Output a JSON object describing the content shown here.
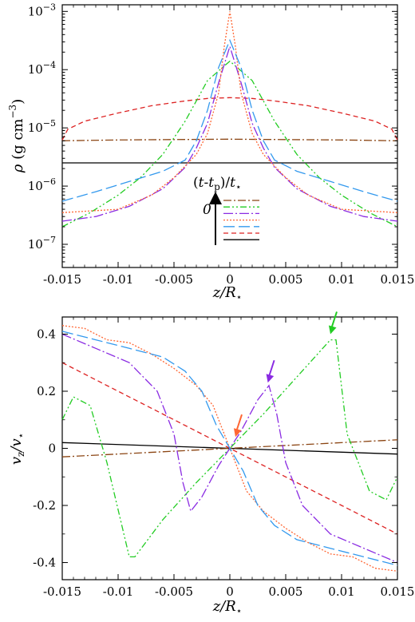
{
  "colors": {
    "brown": "#8B4513",
    "green": "#22cc22",
    "purple": "#8a2be2",
    "orange": "#ff6633",
    "blue": "#3399ee",
    "red": "#dd2222",
    "black": "#000000"
  },
  "legend": {
    "title": "(t-t_p)/t_⋆",
    "arrow_label": "0"
  },
  "chart_data": [
    {
      "type": "line",
      "panel": "top",
      "xlabel": "z/R_⋆",
      "ylabel": "ρ (g cm^-3)",
      "log_y": true,
      "xlim": [
        -0.015,
        0.015
      ],
      "ylim": [
        4e-08,
        0.0013
      ],
      "x_ticks": [
        "-0.015",
        "-0.01",
        "-0.005",
        "0",
        "0.005",
        "0.01",
        "0.015"
      ],
      "y_ticks": [
        "10^-7",
        "10^-6",
        "10^-5",
        "10^-4",
        "10^-3"
      ],
      "series": [
        {
          "color_key": "black",
          "dash": "",
          "x": [
            -0.015,
            -0.01,
            -0.005,
            0,
            0.005,
            0.01,
            0.015
          ],
          "y": [
            2.5e-06,
            2.5e-06,
            2.5e-06,
            2.5e-06,
            2.5e-06,
            2.5e-06,
            2.5e-06
          ]
        },
        {
          "color_key": "brown",
          "dash": "10,3,2,3",
          "x": [
            -0.015,
            -0.01,
            -0.005,
            0,
            0.005,
            0.01,
            0.015
          ],
          "y": [
            6e-06,
            6.2e-06,
            6.3e-06,
            6.4e-06,
            6.3e-06,
            6.2e-06,
            6e-06
          ]
        },
        {
          "color_key": "red",
          "dash": "6,4",
          "x": [
            -0.015,
            -0.0145,
            -0.013,
            -0.01,
            -0.007,
            -0.004,
            -0.002,
            0,
            0.002,
            0.004,
            0.007,
            0.01,
            0.013,
            0.0145,
            0.015
          ],
          "y": [
            6.2e-06,
            9.5e-06,
            1.3e-05,
            1.8e-05,
            2.4e-05,
            2.9e-05,
            3.2e-05,
            3.3e-05,
            3.2e-05,
            2.9e-05,
            2.4e-05,
            1.8e-05,
            1.3e-05,
            9.5e-06,
            6.2e-06
          ]
        },
        {
          "color_key": "green",
          "dash": "8,3,2,3,2,3",
          "x": [
            -0.015,
            -0.0125,
            -0.01,
            -0.008,
            -0.006,
            -0.004,
            -0.002,
            0,
            0.002,
            0.004,
            0.006,
            0.008,
            0.01,
            0.0125,
            0.015
          ],
          "y": [
            2e-07,
            3.5e-07,
            7e-07,
            1.4e-06,
            3.5e-06,
            1.3e-05,
            6.5e-05,
            0.00014,
            6.5e-05,
            1.3e-05,
            3.5e-06,
            1.4e-06,
            7e-07,
            3.5e-07,
            2e-07
          ]
        },
        {
          "color_key": "purple",
          "dash": "12,3,2,3",
          "x": [
            -0.015,
            -0.012,
            -0.009,
            -0.006,
            -0.004,
            -0.003,
            -0.002,
            -0.001,
            0,
            0.001,
            0.002,
            0.003,
            0.004,
            0.006,
            0.009,
            0.012,
            0.015
          ],
          "y": [
            2.5e-07,
            3e-07,
            4.5e-07,
            9e-07,
            2.1e-06,
            4.5e-06,
            1.2e-05,
            6e-05,
            0.00025,
            6e-05,
            1.2e-05,
            4.5e-06,
            2.1e-06,
            9e-07,
            4.5e-07,
            3e-07,
            2.5e-07
          ]
        },
        {
          "color_key": "orange",
          "dash": "2,2",
          "x": [
            -0.015,
            -0.01,
            -0.007,
            -0.005,
            -0.003,
            -0.002,
            -0.001,
            -0.0005,
            0,
            0.0005,
            0.001,
            0.002,
            0.003,
            0.005,
            0.007,
            0.01,
            0.015
          ],
          "y": [
            3.5e-07,
            4e-07,
            7e-07,
            1.4e-06,
            3.5e-06,
            8e-06,
            4e-05,
            0.00025,
            0.001,
            0.00025,
            4e-05,
            8e-06,
            3.5e-06,
            1.4e-06,
            7e-07,
            4e-07,
            3.5e-07
          ]
        },
        {
          "color_key": "blue",
          "dash": "14,5",
          "x": [
            -0.015,
            -0.012,
            -0.009,
            -0.006,
            -0.004,
            -0.003,
            -0.002,
            -0.001,
            0,
            0.001,
            0.002,
            0.003,
            0.004,
            0.006,
            0.009,
            0.012,
            0.015
          ],
          "y": [
            5.5e-07,
            8e-07,
            1.2e-06,
            1.8e-06,
            2.8e-06,
            6e-06,
            2e-05,
            0.00011,
            0.00032,
            0.00011,
            2e-05,
            6e-06,
            2.8e-06,
            1.8e-06,
            1.2e-06,
            8e-07,
            5.5e-07
          ]
        }
      ]
    },
    {
      "type": "line",
      "panel": "bottom",
      "xlabel": "z/R_⋆",
      "ylabel": "v_z/v_⋆",
      "xlim": [
        -0.015,
        0.015
      ],
      "ylim": [
        -0.46,
        0.46
      ],
      "x_ticks": [
        "-0.015",
        "-0.01",
        "-0.005",
        "0",
        "0.005",
        "0.01",
        "0.015"
      ],
      "y_ticks": [
        "-0.4",
        "-0.2",
        "0",
        "0.2",
        "0.4"
      ],
      "series": [
        {
          "color_key": "black",
          "dash": "",
          "x": [
            -0.015,
            0.015
          ],
          "y": [
            0.02,
            -0.02
          ]
        },
        {
          "color_key": "brown",
          "dash": "10,3,2,3",
          "x": [
            -0.015,
            0.015
          ],
          "y": [
            -0.03,
            0.03
          ]
        },
        {
          "color_key": "red",
          "dash": "6,4",
          "x": [
            -0.015,
            -0.01,
            -0.005,
            0,
            0.005,
            0.01,
            0.015
          ],
          "y": [
            0.3,
            0.2,
            0.1,
            0,
            -0.1,
            -0.2,
            -0.3
          ]
        },
        {
          "color_key": "green",
          "dash": "8,3,2,3,2,3",
          "x": [
            -0.015,
            -0.014,
            -0.0125,
            -0.011,
            -0.009,
            -0.0085,
            -0.006,
            -0.003,
            0,
            0.003,
            0.006,
            0.009,
            0.0095,
            0.0105,
            0.0125,
            0.014,
            0.015
          ],
          "y": [
            0.1,
            0.18,
            0.15,
            -0.05,
            -0.38,
            -0.38,
            -0.25,
            -0.12,
            0,
            0.12,
            0.25,
            0.38,
            0.38,
            0.05,
            -0.15,
            -0.18,
            -0.1
          ]
        },
        {
          "color_key": "purple",
          "dash": "12,3,2,3",
          "x": [
            -0.015,
            -0.012,
            -0.009,
            -0.0065,
            -0.005,
            -0.0042,
            -0.0035,
            -0.0025,
            -0.001,
            0,
            0.001,
            0.0025,
            0.0035,
            0.0042,
            0.005,
            0.0065,
            0.009,
            0.012,
            0.015
          ],
          "y": [
            0.4,
            0.35,
            0.3,
            0.2,
            0.05,
            -0.12,
            -0.22,
            -0.17,
            -0.06,
            0,
            0.06,
            0.17,
            0.22,
            0.12,
            -0.05,
            -0.2,
            -0.3,
            -0.35,
            -0.4
          ]
        },
        {
          "color_key": "orange",
          "dash": "2,2",
          "x": [
            -0.015,
            -0.013,
            -0.011,
            -0.009,
            -0.007,
            -0.005,
            -0.003,
            -0.0015,
            -0.0005,
            0,
            0.0005,
            0.0015,
            0.003,
            0.005,
            0.007,
            0.009,
            0.011,
            0.013,
            0.015
          ],
          "y": [
            0.43,
            0.42,
            0.38,
            0.37,
            0.33,
            0.28,
            0.22,
            0.15,
            0.05,
            0,
            -0.05,
            -0.15,
            -0.22,
            -0.28,
            -0.33,
            -0.37,
            -0.38,
            -0.42,
            -0.43
          ]
        },
        {
          "color_key": "blue",
          "dash": "14,5",
          "x": [
            -0.015,
            -0.012,
            -0.009,
            -0.006,
            -0.004,
            -0.0025,
            -0.0012,
            0,
            0.0012,
            0.0025,
            0.004,
            0.006,
            0.009,
            0.012,
            0.015
          ],
          "y": [
            0.41,
            0.38,
            0.35,
            0.32,
            0.27,
            0.2,
            0.08,
            0,
            -0.08,
            -0.2,
            -0.27,
            -0.32,
            -0.35,
            -0.38,
            -0.41
          ]
        }
      ],
      "arrows": [
        {
          "color_key": "orange",
          "x": 0.0005,
          "y": 0.04
        },
        {
          "color_key": "purple",
          "x": 0.0034,
          "y": 0.23
        },
        {
          "color_key": "green",
          "x": 0.009,
          "y": 0.4
        }
      ]
    }
  ]
}
